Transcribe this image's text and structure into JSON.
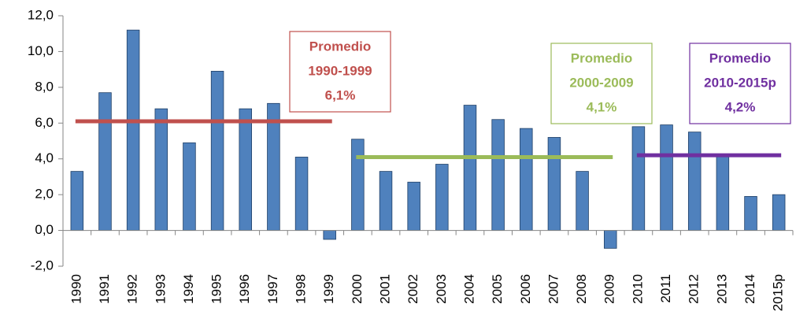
{
  "chart_data": {
    "type": "bar",
    "categories": [
      "1990",
      "1991",
      "1992",
      "1993",
      "1994",
      "1995",
      "1996",
      "1997",
      "1998",
      "1999",
      "2000",
      "2001",
      "2002",
      "2003",
      "2004",
      "2005",
      "2006",
      "2007",
      "2008",
      "2009",
      "2010",
      "2011",
      "2012",
      "2013",
      "2014",
      "2015p"
    ],
    "values": [
      3.3,
      7.7,
      11.2,
      6.8,
      4.9,
      8.9,
      6.8,
      7.1,
      4.1,
      -0.5,
      5.1,
      3.3,
      2.7,
      3.7,
      7.0,
      6.2,
      5.7,
      5.2,
      3.3,
      -1.0,
      5.8,
      5.9,
      5.5,
      4.2,
      1.9,
      2.0
    ],
    "color": "#4f81bd",
    "ylim": [
      -2,
      12
    ],
    "yticks": [
      {
        "value": -2,
        "label": "-2,0"
      },
      {
        "value": 0,
        "label": "0,0"
      },
      {
        "value": 2,
        "label": "2,0"
      },
      {
        "value": 4,
        "label": "4,0"
      },
      {
        "value": 6,
        "label": "6,0"
      },
      {
        "value": 8,
        "label": "8,0"
      },
      {
        "value": 10,
        "label": "10,0"
      },
      {
        "value": 12,
        "label": "12,0"
      }
    ],
    "annotations": [
      {
        "label": "Promedio",
        "period": "1990-1999",
        "value": 6.1,
        "value_label": "6,1%",
        "color": "#c0504d"
      },
      {
        "label": "Promedio",
        "period": "2000-2009",
        "value": 4.1,
        "value_label": "4,1%",
        "color": "#9bbb59"
      },
      {
        "label": "Promedio",
        "period": "2010-2015p",
        "value": 4.2,
        "value_label": "4,2%",
        "color": "#7030a0"
      }
    ]
  }
}
